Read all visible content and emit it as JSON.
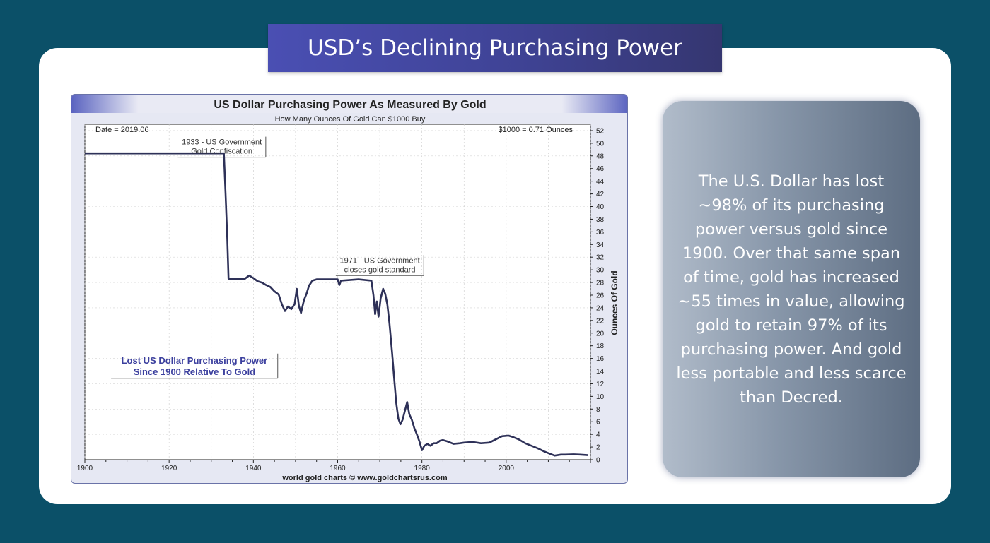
{
  "banner": {
    "title": "USD’s Declining Purchasing Power"
  },
  "side_panel": {
    "text": "The U.S. Dollar has lost ~98% of its purchasing power versus gold since 1900. Over that same span of time, gold has increased ~55 times in value, allowing gold to retain 97% of its purchasing power. And gold less portable and less scarce than Decred."
  },
  "colors": {
    "background": "#0b5068",
    "banner": "#4a4fb3",
    "line": "#2e3158",
    "chart_frame": "#e6e8f3"
  },
  "chart_data": {
    "type": "line",
    "title": "US Dollar Purchasing Power As Measured By Gold",
    "subtitle": "How Many Ounces Of Gold Can $1000 Buy",
    "ylabel": "Ounces Of Gold",
    "xlabel": "",
    "date_label": "Date = 2019.06",
    "value_label": "$1000 = 0.71 Ounces",
    "source": "world gold charts © www.goldchartsrus.com",
    "xlim": [
      1900,
      2020
    ],
    "ylim": [
      0,
      53
    ],
    "x_ticks": [
      1900,
      1920,
      1940,
      1960,
      1980,
      2000
    ],
    "y_ticks": [
      0,
      2,
      4,
      6,
      8,
      10,
      12,
      14,
      16,
      18,
      20,
      22,
      24,
      26,
      28,
      30,
      32,
      34,
      36,
      38,
      40,
      42,
      44,
      46,
      48,
      50,
      52
    ],
    "grid": true,
    "annotations": [
      {
        "lines": [
          "1933 - US Government",
          "Gold Confiscation"
        ],
        "x": 1932.5,
        "y": 49.8
      },
      {
        "lines": [
          "1971 - US Government",
          "closes gold standard"
        ],
        "x": 1970,
        "y": 31.1
      },
      {
        "lines": [
          "Lost US Dollar Purchasing Power",
          "Since 1900 Relative To Gold"
        ],
        "x": 1926,
        "y": 15.2,
        "emphasis": true
      }
    ],
    "series": [
      {
        "points": [
          [
            1900,
            48.4
          ],
          [
            1933,
            48.4
          ],
          [
            1933.4,
            42
          ],
          [
            1933.8,
            35
          ],
          [
            1934.1,
            28.6
          ],
          [
            1938,
            28.6
          ],
          [
            1939,
            29.1
          ],
          [
            1940,
            28.7
          ],
          [
            1941,
            28.2
          ],
          [
            1942,
            28
          ],
          [
            1943,
            27.6
          ],
          [
            1944,
            27.3
          ],
          [
            1945,
            26.6
          ],
          [
            1946,
            26.1
          ],
          [
            1946.8,
            24.5
          ],
          [
            1947.5,
            23.5
          ],
          [
            1948.2,
            24.2
          ],
          [
            1949,
            23.8
          ],
          [
            1949.8,
            24.6
          ],
          [
            1950.3,
            27
          ],
          [
            1950.8,
            24.3
          ],
          [
            1951.3,
            23.2
          ],
          [
            1952,
            25.2
          ],
          [
            1952.6,
            26.2
          ],
          [
            1953.2,
            27.5
          ],
          [
            1954,
            28.3
          ],
          [
            1955,
            28.5
          ],
          [
            1960,
            28.5
          ],
          [
            1960.4,
            27.6
          ],
          [
            1960.8,
            28.3
          ],
          [
            1965,
            28.5
          ],
          [
            1968,
            28.3
          ],
          [
            1968.5,
            26
          ],
          [
            1968.9,
            23
          ],
          [
            1969.3,
            25
          ],
          [
            1969.7,
            22.6
          ],
          [
            1970.2,
            25.5
          ],
          [
            1970.8,
            27
          ],
          [
            1971.3,
            26.2
          ],
          [
            1971.8,
            24.5
          ],
          [
            1972.3,
            21.5
          ],
          [
            1972.9,
            17
          ],
          [
            1973.4,
            13
          ],
          [
            1973.9,
            9
          ],
          [
            1974.4,
            6.5
          ],
          [
            1974.9,
            5.6
          ],
          [
            1975.4,
            6.3
          ],
          [
            1976,
            7.8
          ],
          [
            1976.5,
            9.1
          ],
          [
            1977,
            7.2
          ],
          [
            1977.6,
            6.3
          ],
          [
            1978.2,
            5
          ],
          [
            1978.8,
            4
          ],
          [
            1979.4,
            2.9
          ],
          [
            1980,
            1.5
          ],
          [
            1980.6,
            2.2
          ],
          [
            1981.3,
            2.5
          ],
          [
            1982,
            2.2
          ],
          [
            1982.8,
            2.6
          ],
          [
            1983.5,
            2.6
          ],
          [
            1984.3,
            3
          ],
          [
            1985,
            3.1
          ],
          [
            1986,
            2.9
          ],
          [
            1987.5,
            2.5
          ],
          [
            1989,
            2.6
          ],
          [
            1990,
            2.7
          ],
          [
            1992,
            2.8
          ],
          [
            1994,
            2.6
          ],
          [
            1996,
            2.7
          ],
          [
            1997.5,
            3.2
          ],
          [
            1999,
            3.7
          ],
          [
            2000.5,
            3.8
          ],
          [
            2001.5,
            3.6
          ],
          [
            2003,
            3.2
          ],
          [
            2004.5,
            2.6
          ],
          [
            2006,
            2.2
          ],
          [
            2007.5,
            1.8
          ],
          [
            2009,
            1.3
          ],
          [
            2010.5,
            0.9
          ],
          [
            2011.5,
            0.65
          ],
          [
            2013,
            0.8
          ],
          [
            2014,
            0.8
          ],
          [
            2016,
            0.85
          ],
          [
            2017.5,
            0.8
          ],
          [
            2019.4,
            0.71
          ]
        ]
      }
    ]
  }
}
